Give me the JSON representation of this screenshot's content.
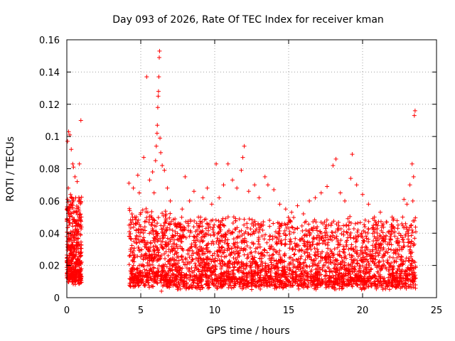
{
  "chart_data": {
    "type": "scatter",
    "title": "Day 093 of 2026, Rate Of TEC Index for receiver kman",
    "xlabel": "GPS time / hours",
    "ylabel": "ROTI / TECUs",
    "xlim": [
      0,
      25
    ],
    "ylim": [
      0,
      0.16
    ],
    "xticks": [
      "0",
      "5",
      "10",
      "15",
      "20",
      "25"
    ],
    "yticks": [
      "0",
      "0.02",
      "0.04",
      "0.06",
      "0.08",
      "0.1",
      "0.12",
      "0.14",
      "0.16"
    ],
    "grid": true,
    "legend": "none",
    "marker": "plus",
    "color": "#ff0000",
    "series": [
      {
        "points": [
          [
            0.05,
            0.097
          ],
          [
            0.12,
            0.103
          ],
          [
            0.2,
            0.101
          ],
          [
            0.3,
            0.092
          ],
          [
            0.4,
            0.083
          ],
          [
            0.45,
            0.081
          ],
          [
            0.55,
            0.075
          ],
          [
            0.7,
            0.072
          ],
          [
            0.85,
            0.083
          ],
          [
            0.95,
            0.11
          ],
          [
            0.1,
            0.068
          ],
          [
            0.25,
            0.064
          ],
          [
            0.35,
            0.058
          ],
          [
            0.6,
            0.062
          ],
          [
            0.8,
            0.055
          ],
          [
            0.15,
            0.045
          ],
          [
            0.5,
            0.048
          ],
          [
            0.75,
            0.04
          ],
          [
            0.05,
            0.035
          ],
          [
            0.3,
            0.03
          ],
          [
            0.65,
            0.032
          ],
          [
            0.9,
            0.028
          ],
          [
            0.2,
            0.022
          ],
          [
            0.45,
            0.018
          ],
          [
            0.7,
            0.015
          ],
          [
            0.1,
            0.012
          ],
          [
            0.55,
            0.014
          ],
          [
            0.85,
            0.02
          ],
          [
            0.35,
            0.025
          ],
          [
            0.95,
            0.045
          ],
          [
            4.2,
            0.071
          ],
          [
            4.5,
            0.068
          ],
          [
            4.9,
            0.065
          ],
          [
            4.8,
            0.076
          ],
          [
            5.2,
            0.087
          ],
          [
            5.4,
            0.137
          ],
          [
            5.6,
            0.073
          ],
          [
            5.8,
            0.078
          ],
          [
            5.9,
            0.065
          ],
          [
            6.0,
            0.085
          ],
          [
            6.05,
            0.094
          ],
          [
            6.1,
            0.102
          ],
          [
            6.12,
            0.107
          ],
          [
            6.15,
            0.118
          ],
          [
            6.18,
            0.125
          ],
          [
            6.2,
            0.128
          ],
          [
            6.22,
            0.137
          ],
          [
            6.25,
            0.149
          ],
          [
            6.27,
            0.153
          ],
          [
            6.3,
            0.099
          ],
          [
            6.35,
            0.09
          ],
          [
            6.45,
            0.082
          ],
          [
            6.6,
            0.079
          ],
          [
            6.8,
            0.068
          ],
          [
            7.0,
            0.06
          ],
          [
            4.3,
            0.03
          ],
          [
            4.6,
            0.025
          ],
          [
            4.9,
            0.02
          ],
          [
            5.1,
            0.035
          ],
          [
            5.5,
            0.03
          ],
          [
            5.7,
            0.045
          ],
          [
            6.5,
            0.04
          ],
          [
            6.9,
            0.03
          ],
          [
            7.2,
            0.02
          ],
          [
            6.4,
            0.004
          ],
          [
            6.7,
            0.008
          ],
          [
            7.5,
            0.044
          ],
          [
            7.8,
            0.055
          ],
          [
            8.0,
            0.075
          ],
          [
            8.3,
            0.06
          ],
          [
            8.6,
            0.066
          ],
          [
            8.9,
            0.05
          ],
          [
            9.2,
            0.062
          ],
          [
            9.5,
            0.068
          ],
          [
            9.8,
            0.058
          ],
          [
            10.1,
            0.083
          ],
          [
            10.3,
            0.062
          ],
          [
            10.6,
            0.07
          ],
          [
            10.9,
            0.083
          ],
          [
            11.2,
            0.073
          ],
          [
            11.5,
            0.068
          ],
          [
            11.8,
            0.079
          ],
          [
            11.9,
            0.087
          ],
          [
            12.0,
            0.094
          ],
          [
            12.3,
            0.066
          ],
          [
            12.7,
            0.07
          ],
          [
            13.0,
            0.062
          ],
          [
            13.4,
            0.075
          ],
          [
            13.6,
            0.07
          ],
          [
            14.0,
            0.067
          ],
          [
            14.4,
            0.058
          ],
          [
            14.8,
            0.055
          ],
          [
            15.2,
            0.053
          ],
          [
            15.6,
            0.057
          ],
          [
            16.0,
            0.052
          ],
          [
            16.4,
            0.06
          ],
          [
            16.8,
            0.062
          ],
          [
            17.2,
            0.065
          ],
          [
            17.6,
            0.069
          ],
          [
            18.0,
            0.082
          ],
          [
            18.2,
            0.086
          ],
          [
            18.5,
            0.065
          ],
          [
            18.8,
            0.06
          ],
          [
            19.2,
            0.074
          ],
          [
            19.3,
            0.089
          ],
          [
            19.6,
            0.07
          ],
          [
            20.0,
            0.064
          ],
          [
            20.4,
            0.058
          ],
          [
            20.8,
            0.05
          ],
          [
            21.2,
            0.053
          ],
          [
            21.6,
            0.047
          ],
          [
            22.0,
            0.05
          ],
          [
            22.4,
            0.045
          ],
          [
            22.8,
            0.061
          ],
          [
            23.0,
            0.058
          ],
          [
            23.2,
            0.07
          ],
          [
            23.35,
            0.083
          ],
          [
            23.45,
            0.075
          ],
          [
            23.5,
            0.113
          ],
          [
            23.55,
            0.116
          ],
          [
            23.4,
            0.06
          ],
          [
            23.3,
            0.045
          ]
        ]
      }
    ]
  }
}
